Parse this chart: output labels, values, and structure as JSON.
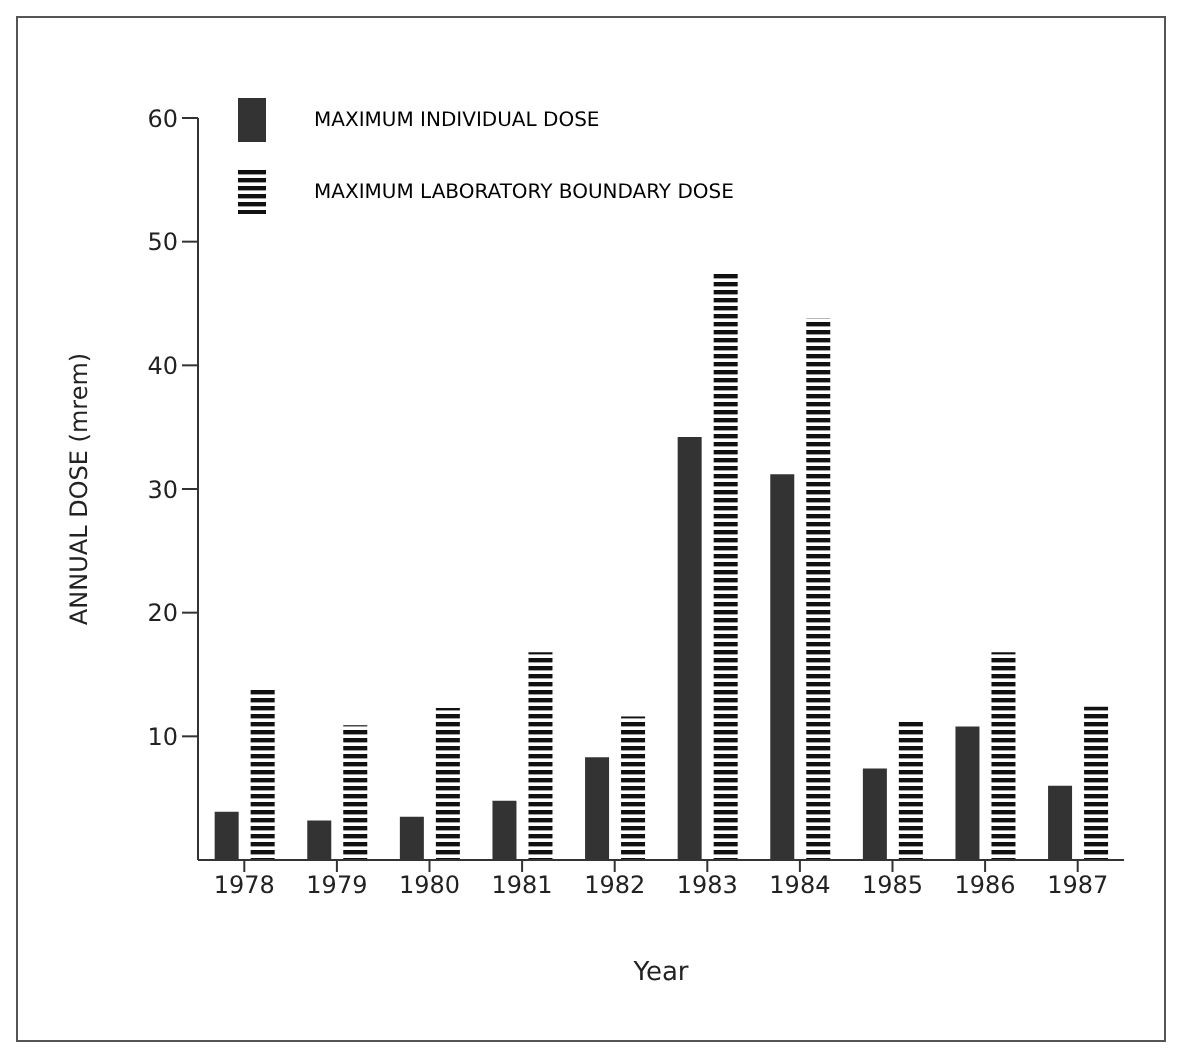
{
  "chart_data": {
    "type": "bar",
    "xlabel": "Year",
    "ylabel": "ANNUAL DOSE (mrem)",
    "categories": [
      "1978",
      "1979",
      "1980",
      "1981",
      "1982",
      "1983",
      "1984",
      "1985",
      "1986",
      "1987"
    ],
    "series": [
      {
        "name": "MAXIMUM INDIVIDUAL DOSE",
        "color": "#333333",
        "values": [
          3.9,
          3.2,
          3.5,
          4.8,
          8.3,
          34.2,
          31.2,
          7.4,
          10.8,
          6.0
        ]
      },
      {
        "name": "MAXIMUM LABORATORY BOUNDARY DOSE",
        "color": "#111111",
        "values": [
          13.9,
          10.9,
          12.3,
          16.8,
          11.6,
          47.5,
          43.8,
          11.4,
          16.8,
          12.4
        ]
      }
    ],
    "ylim": [
      0,
      60
    ],
    "yticks": [
      10,
      20,
      30,
      40,
      50,
      60
    ],
    "legend": "top left"
  }
}
